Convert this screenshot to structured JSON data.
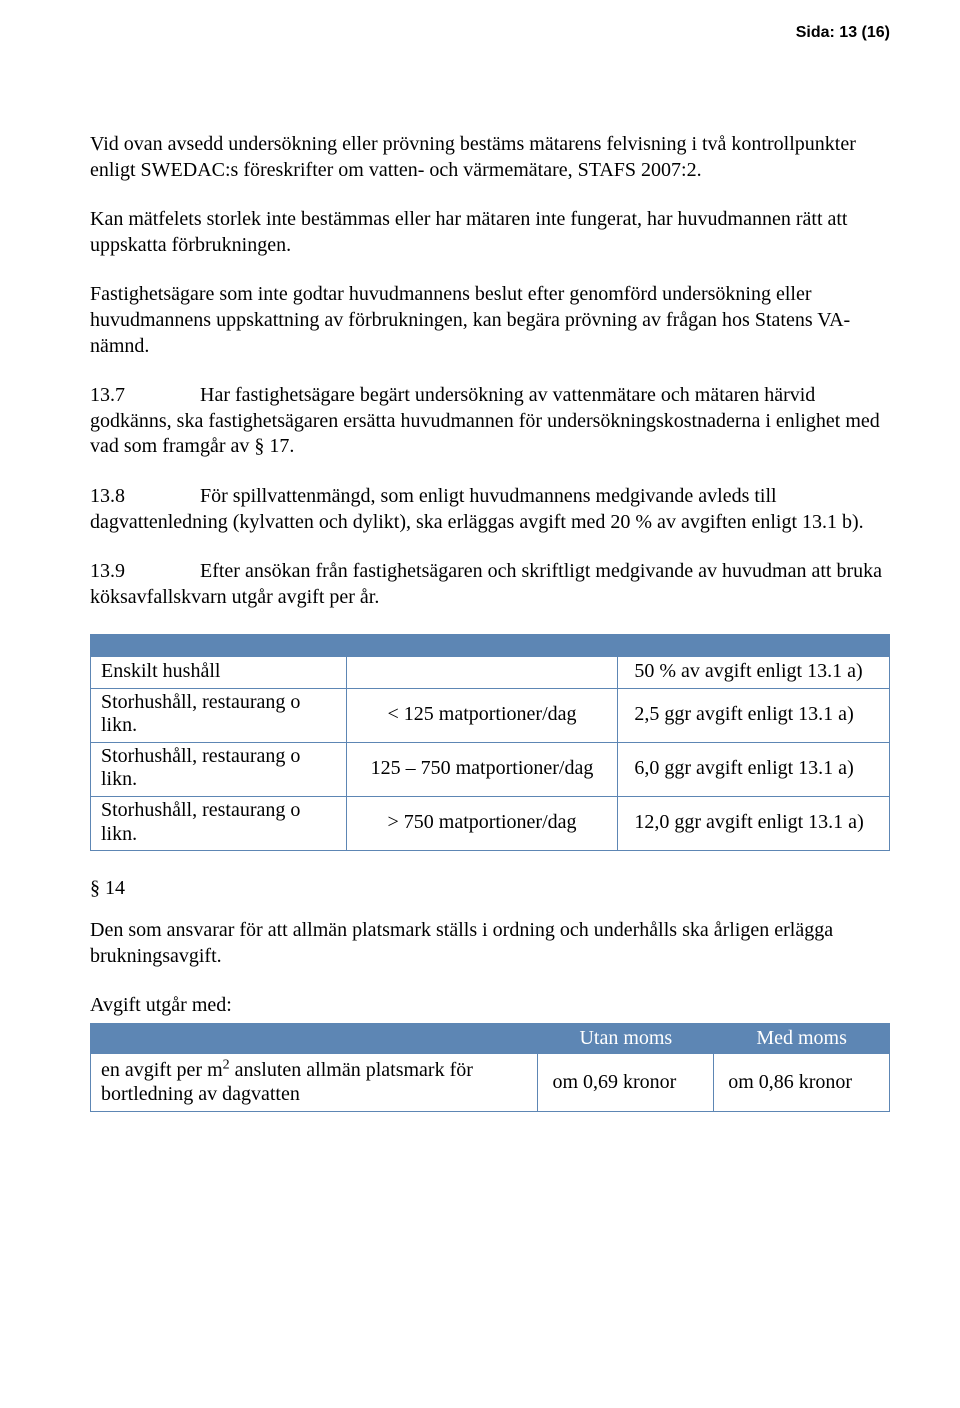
{
  "page_header": "Sida: 13 (16)",
  "colors": {
    "t1_head_bg": "#5d86b4",
    "t1_border": "#5d86b4",
    "t2_head_bg": "#5d86b4",
    "t2_border": "#5d86b4"
  },
  "paragraphs": {
    "p1": "Vid ovan avsedd undersökning eller prövning bestäms mätarens felvisning i två kontrollpunkter enligt SWEDAC:s föreskrifter om vatten- och värmemätare, STAFS 2007:2.",
    "p2": "Kan mätfelets storlek inte bestämmas eller har mätaren inte fungerat, har huvudmannen rätt att uppskatta förbrukningen.",
    "p3": "Fastighetsägare som inte godtar huvudmannens beslut efter genomförd undersökning eller huvudmannens uppskattning av förbrukningen, kan begära prövning av frågan hos Statens VA-nämnd.",
    "c137_num": "13.7",
    "c137": "Har fastighetsägare begärt undersökning av vattenmätare och mätaren härvid godkänns, ska fastighetsägaren ersätta huvudmannen för undersökningskostnaderna i enlighet med vad som framgår av § 17.",
    "c138_num": "13.8",
    "c138": "För spillvattenmängd, som enligt huvudmannens medgivande avleds till dagvattenledning (kylvatten och dylikt), ska erläggas avgift med 20 % av avgiften enligt 13.1 b).",
    "c139_num": "13.9",
    "c139": "Efter ansökan från fastighetsägaren och skriftligt medgivande av huvudman att bruka köksavfallskvarn utgår avgift per år."
  },
  "table1": {
    "rows": [
      {
        "a": "Enskilt hushåll",
        "b": "",
        "c": "50 % av avgift enligt 13.1 a)"
      },
      {
        "a": "Storhushåll, restaurang o likn.",
        "b": "< 125 matportioner/dag",
        "c": "2,5 ggr avgift enligt 13.1 a)"
      },
      {
        "a": "Storhushåll, restaurang o likn.",
        "b": "125 – 750 matportioner/dag",
        "c": "6,0 ggr avgift enligt 13.1 a)"
      },
      {
        "a": "Storhushåll, restaurang o likn.",
        "b": "> 750 matportioner/dag",
        "c": "12,0 ggr avgift enligt 13.1 a)"
      }
    ]
  },
  "sec14": {
    "label": "§ 14",
    "p1": "Den som ansvarar för att allmän platsmark ställs i ordning och underhålls ska årligen erlägga brukningsavgift.",
    "lead": "Avgift utgår med:"
  },
  "table2": {
    "headers": {
      "h1": "",
      "h2": "Utan moms",
      "h3": "Med moms"
    },
    "row": {
      "desc_html": "en avgift per m<sup>2</sup> ansluten allmän platsmark för bortledning av dagvatten",
      "utan": "om 0,69 kronor",
      "med": "om 0,86 kronor"
    }
  },
  "typography": {
    "body_fontsize_pt": 15,
    "header_fontsize_pt": 12,
    "font_family": "Garamond"
  }
}
